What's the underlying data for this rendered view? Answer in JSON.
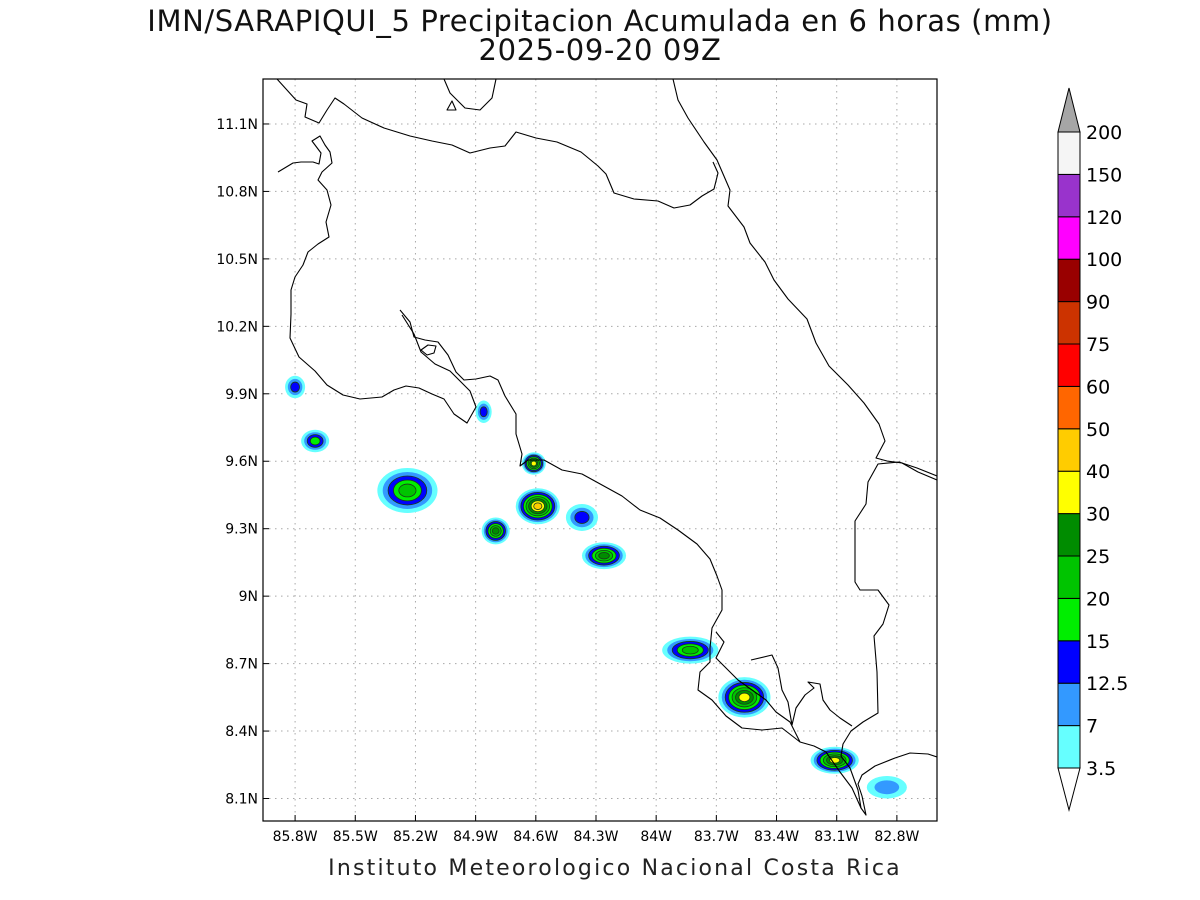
{
  "title": "IMN/SARAPIQUI_5 Precipitacion Acumulada en 6 horas (mm)",
  "subtitle": "2025-09-20 09Z",
  "footer": "Instituto Meteorologico Nacional Costa Rica",
  "map": {
    "lon_range": [
      -85.96,
      -82.6
    ],
    "lat_range": [
      8.0,
      11.3
    ],
    "lat_ticks": [
      {
        "value": 8.1,
        "label": "8.1N"
      },
      {
        "value": 8.4,
        "label": "8.4N"
      },
      {
        "value": 8.7,
        "label": "8.7N"
      },
      {
        "value": 9.0,
        "label": "9N"
      },
      {
        "value": 9.3,
        "label": "9.3N"
      },
      {
        "value": 9.6,
        "label": "9.6N"
      },
      {
        "value": 9.9,
        "label": "9.9N"
      },
      {
        "value": 10.2,
        "label": "10.2N"
      },
      {
        "value": 10.5,
        "label": "10.5N"
      },
      {
        "value": 10.8,
        "label": "10.8N"
      },
      {
        "value": 11.1,
        "label": "11.1N"
      }
    ],
    "lon_ticks": [
      {
        "value": -85.8,
        "label": "85.8W"
      },
      {
        "value": -85.5,
        "label": "85.5W"
      },
      {
        "value": -85.2,
        "label": "85.2W"
      },
      {
        "value": -84.9,
        "label": "84.9W"
      },
      {
        "value": -84.6,
        "label": "84.6W"
      },
      {
        "value": -84.3,
        "label": "84.3W"
      },
      {
        "value": -84.0,
        "label": "84W"
      },
      {
        "value": -83.7,
        "label": "83.7W"
      },
      {
        "value": -83.4,
        "label": "83.4W"
      },
      {
        "value": -83.1,
        "label": "83.1W"
      },
      {
        "value": -82.8,
        "label": "82.8W"
      }
    ],
    "grid": true,
    "precip_cells": [
      {
        "lon": -85.8,
        "lat": 9.93,
        "rx": 0.05,
        "ry": 0.05,
        "peak": 12.5
      },
      {
        "lon": -85.7,
        "lat": 9.69,
        "rx": 0.07,
        "ry": 0.05,
        "peak": 15
      },
      {
        "lon": -85.24,
        "lat": 9.47,
        "rx": 0.15,
        "ry": 0.1,
        "peak": 20
      },
      {
        "lon": -84.86,
        "lat": 9.82,
        "rx": 0.04,
        "ry": 0.05,
        "peak": 12.5
      },
      {
        "lon": -84.61,
        "lat": 9.59,
        "rx": 0.06,
        "ry": 0.05,
        "peak": 30
      },
      {
        "lon": -84.59,
        "lat": 9.4,
        "rx": 0.11,
        "ry": 0.08,
        "peak": 40
      },
      {
        "lon": -84.8,
        "lat": 9.29,
        "rx": 0.07,
        "ry": 0.06,
        "peak": 25
      },
      {
        "lon": -84.26,
        "lat": 9.18,
        "rx": 0.11,
        "ry": 0.06,
        "peak": 25
      },
      {
        "lon": -84.37,
        "lat": 9.35,
        "rx": 0.08,
        "ry": 0.06,
        "peak": 12.5
      },
      {
        "lon": -83.83,
        "lat": 8.76,
        "rx": 0.14,
        "ry": 0.06,
        "peak": 20
      },
      {
        "lon": -83.56,
        "lat": 8.55,
        "rx": 0.13,
        "ry": 0.09,
        "peak": 30
      },
      {
        "lon": -83.11,
        "lat": 8.27,
        "rx": 0.12,
        "ry": 0.06,
        "peak": 30
      },
      {
        "lon": -82.85,
        "lat": 8.15,
        "rx": 0.1,
        "ry": 0.05,
        "peak": 7
      }
    ]
  },
  "colorbar": {
    "levels": [
      "3.5",
      "7",
      "12.5",
      "15",
      "20",
      "25",
      "30",
      "40",
      "50",
      "60",
      "75",
      "90",
      "100",
      "120",
      "150",
      "200"
    ],
    "colors": [
      "#66ffff",
      "#3399ff",
      "#0000ff",
      "#00ee00",
      "#00c400",
      "#008c00",
      "#ffff00",
      "#ffcc00",
      "#ff6600",
      "#ff0000",
      "#cc3300",
      "#990000",
      "#ff00ff",
      "#9933cc",
      "#f5f5f5"
    ],
    "over_color": "#a6a6a6",
    "under_color": "#ffffff"
  }
}
